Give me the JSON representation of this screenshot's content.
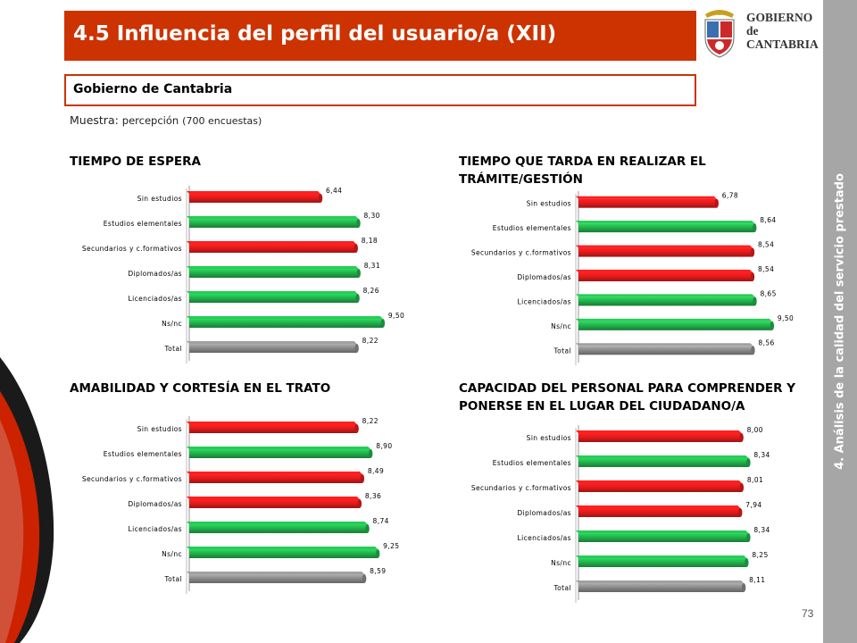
{
  "header": {
    "title": "4.5 Influencia del perfil del usuario/a (XII)"
  },
  "logo": {
    "line1": "GOBIERNO",
    "line2": "de",
    "line3": "CANTABRIA"
  },
  "subheader": {
    "text": "Gobierno de Cantabria"
  },
  "sample": {
    "label": "Muestra: ",
    "value": "percepción",
    "detail": "(700 encuestas)"
  },
  "sidebar": {
    "text": "4. Análisis de la calidad del servicio prestado"
  },
  "page_number": "73",
  "colors": {
    "red": "#e31b1b",
    "green": "#22b14c",
    "gray": "#8c8c8c",
    "brand": "#cc3300"
  },
  "chart_data": [
    {
      "type": "bar",
      "orientation": "horizontal",
      "title": "TIEMPO DE ESPERA",
      "categories": [
        "Sin estudios",
        "Estudios elementales",
        "Secundarios y c.formativos",
        "Diplomados/as",
        "Licenciados/as",
        "Ns/nc",
        "Total"
      ],
      "values": [
        6.44,
        8.3,
        8.18,
        8.31,
        8.26,
        9.5,
        8.22
      ],
      "labels": [
        "6,44",
        "8,30",
        "8,18",
        "8,31",
        "8,26",
        "9,50",
        "8,22"
      ],
      "bar_colors": [
        "red",
        "green",
        "red",
        "green",
        "green",
        "green",
        "gray"
      ]
    },
    {
      "type": "bar",
      "orientation": "horizontal",
      "title": "TIEMPO QUE TARDA EN REALIZAR EL TRÁMITE/GESTIÓN",
      "categories": [
        "Sin estudios",
        "Estudios elementales",
        "Secundarios y c.formativos",
        "Diplomados/as",
        "Licenciados/as",
        "Ns/nc",
        "Total"
      ],
      "values": [
        6.78,
        8.64,
        8.54,
        8.54,
        8.65,
        9.5,
        8.56
      ],
      "labels": [
        "6,78",
        "8,64",
        "8,54",
        "8,54",
        "8,65",
        "9,50",
        "8,56"
      ],
      "bar_colors": [
        "red",
        "green",
        "red",
        "red",
        "green",
        "green",
        "gray"
      ]
    },
    {
      "type": "bar",
      "orientation": "horizontal",
      "title": "AMABILIDAD Y CORTESÍA EN EL TRATO",
      "categories": [
        "Sin estudios",
        "Estudios elementales",
        "Secundarios y c.formativos",
        "Diplomados/as",
        "Licenciados/as",
        "Ns/nc",
        "Total"
      ],
      "values": [
        8.22,
        8.9,
        8.49,
        8.36,
        8.74,
        9.25,
        8.59
      ],
      "labels": [
        "8,22",
        "8,90",
        "8,49",
        "8,36",
        "8,74",
        "9,25",
        "8,59"
      ],
      "bar_colors": [
        "red",
        "green",
        "red",
        "red",
        "green",
        "green",
        "gray"
      ]
    },
    {
      "type": "bar",
      "orientation": "horizontal",
      "title": "CAPACIDAD DEL PERSONAL PARA COMPRENDER Y PONERSE EN EL LUGAR DEL CIUDADANO/A",
      "categories": [
        "Sin estudios",
        "Estudios elementales",
        "Secundarios y c.formativos",
        "Diplomados/as",
        "Licenciados/as",
        "Ns/nc",
        "Total"
      ],
      "values": [
        8.0,
        8.34,
        8.01,
        7.94,
        8.34,
        8.25,
        8.11
      ],
      "labels": [
        "8,00",
        "8,34",
        "8,01",
        "7,94",
        "8,34",
        "8,25",
        "8,11"
      ],
      "bar_colors": [
        "red",
        "green",
        "red",
        "red",
        "green",
        "green",
        "gray"
      ]
    }
  ]
}
